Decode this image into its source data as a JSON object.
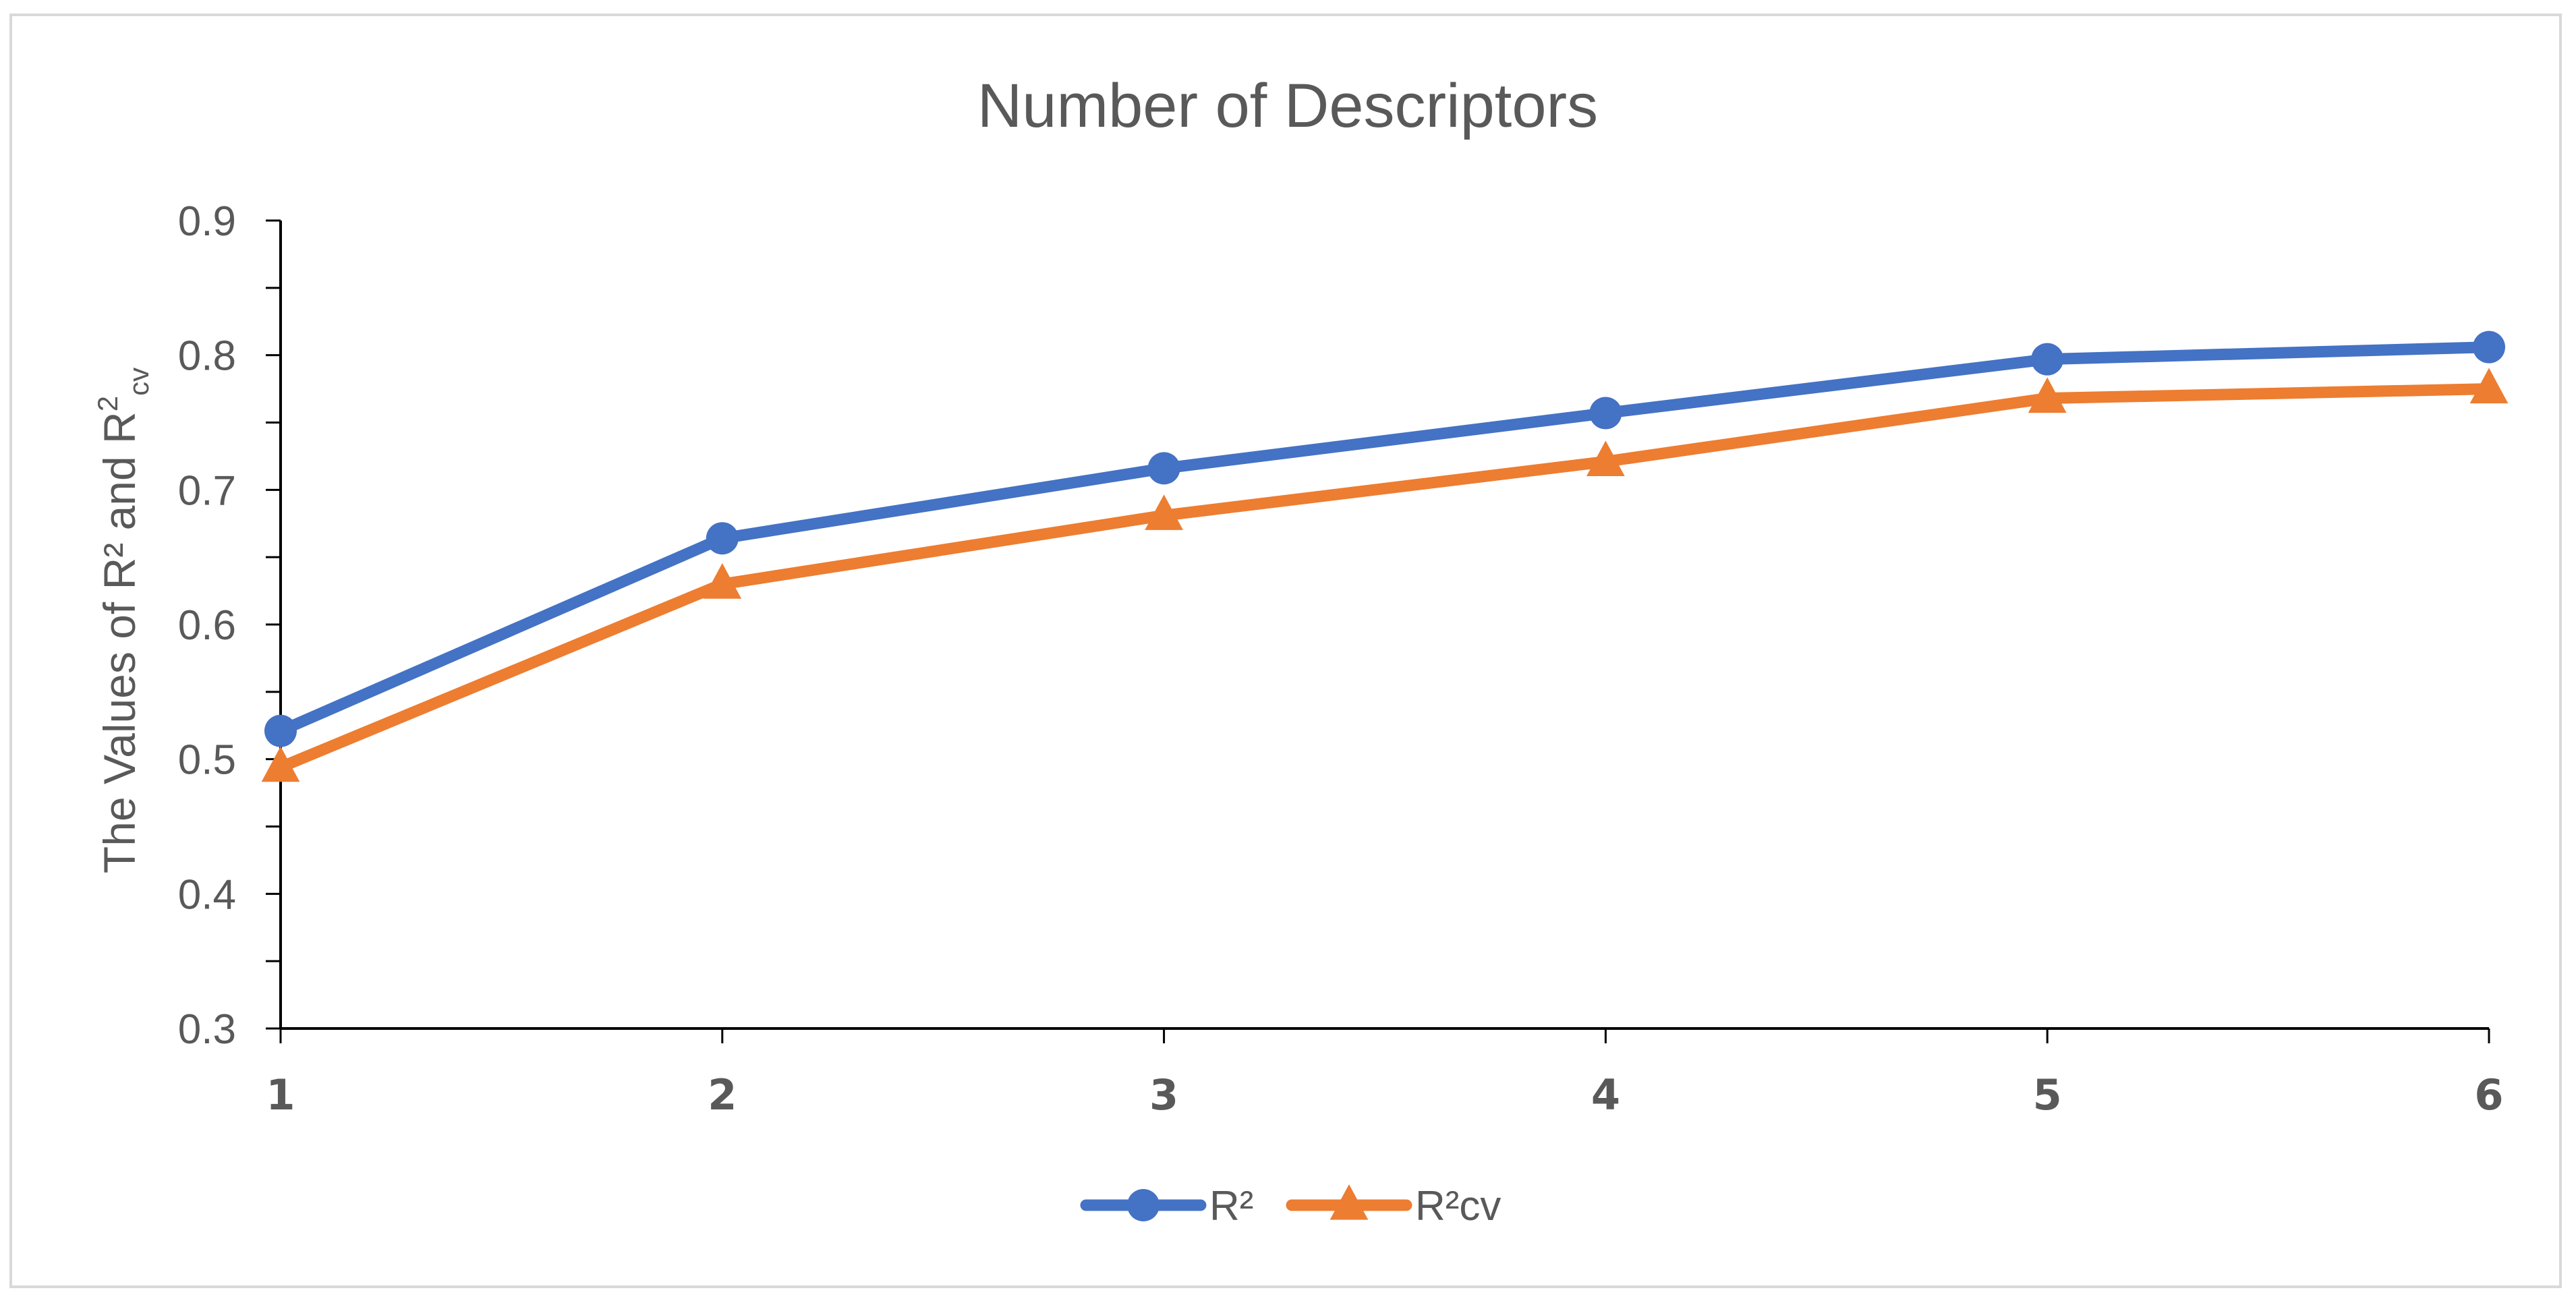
{
  "chart_data": {
    "type": "line",
    "title": "Number of Descriptors",
    "ylabel": {
      "main": "The Values of R² and R",
      "sup": "2",
      "sub": "cv"
    },
    "xlabel": "",
    "categories": [
      "1",
      "2",
      "3",
      "4",
      "5",
      "6"
    ],
    "ylim": [
      0.3,
      0.9
    ],
    "yticks": [
      "0.3",
      "0.4",
      "0.5",
      "0.6",
      "0.7",
      "0.8",
      "0.9"
    ],
    "y_minor_step": 0.05,
    "grid": false,
    "legend_position": "bottom",
    "series": [
      {
        "name": "R²",
        "values": [
          0.521,
          0.664,
          0.716,
          0.757,
          0.797,
          0.806
        ],
        "color": "#4472c4",
        "marker": "circle"
      },
      {
        "name": "R²cv",
        "values": [
          0.494,
          0.63,
          0.681,
          0.721,
          0.768,
          0.775
        ],
        "color": "#ed7d31",
        "marker": "triangle"
      }
    ]
  }
}
